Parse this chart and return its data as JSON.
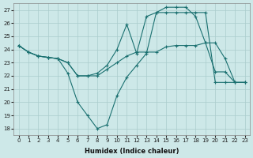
{
  "xlabel": "Humidex (Indice chaleur)",
  "xlim": [
    -0.5,
    23.5
  ],
  "ylim": [
    17.5,
    27.5
  ],
  "yticks": [
    18,
    19,
    20,
    21,
    22,
    23,
    24,
    25,
    26,
    27
  ],
  "xticks": [
    0,
    1,
    2,
    3,
    4,
    5,
    6,
    7,
    8,
    9,
    10,
    11,
    12,
    13,
    14,
    15,
    16,
    17,
    18,
    19,
    20,
    21,
    22,
    23
  ],
  "bg_color": "#cde8e8",
  "grid_color": "#aacccc",
  "line_color": "#1a7070",
  "line1_x": [
    0,
    1,
    2,
    3,
    4,
    5,
    6,
    7,
    8,
    9,
    10,
    11,
    12,
    13,
    14,
    15,
    16,
    17,
    18,
    19,
    20,
    21,
    22,
    23
  ],
  "line1": [
    24.3,
    23.8,
    23.5,
    23.4,
    23.3,
    22.2,
    20.0,
    19.0,
    18.0,
    18.3,
    20.5,
    21.9,
    22.8,
    23.7,
    26.8,
    27.2,
    27.2,
    27.2,
    26.5,
    24.5,
    22.3,
    22.3,
    21.5,
    21.5
  ],
  "line2_x": [
    0,
    1,
    2,
    3,
    4,
    5,
    6,
    7,
    8,
    9,
    10,
    11,
    12,
    13,
    14,
    15,
    16,
    17,
    18,
    19,
    20,
    21,
    22,
    23
  ],
  "line2": [
    24.3,
    23.8,
    23.5,
    23.4,
    23.3,
    23.0,
    22.0,
    22.0,
    22.0,
    22.5,
    23.0,
    23.5,
    23.8,
    23.8,
    23.8,
    24.2,
    24.3,
    24.3,
    24.3,
    24.5,
    24.5,
    23.3,
    21.5,
    21.5
  ],
  "line3_x": [
    0,
    1,
    2,
    3,
    4,
    5,
    6,
    7,
    8,
    9,
    10,
    11,
    12,
    13,
    14,
    15,
    16,
    17,
    18,
    19,
    20,
    21,
    22,
    23
  ],
  "line3": [
    24.3,
    23.8,
    23.5,
    23.4,
    23.3,
    23.0,
    22.0,
    22.0,
    22.2,
    22.8,
    24.0,
    25.9,
    23.7,
    26.5,
    26.8,
    26.8,
    26.8,
    26.8,
    26.8,
    26.8,
    21.5,
    21.5,
    21.5,
    21.5
  ]
}
